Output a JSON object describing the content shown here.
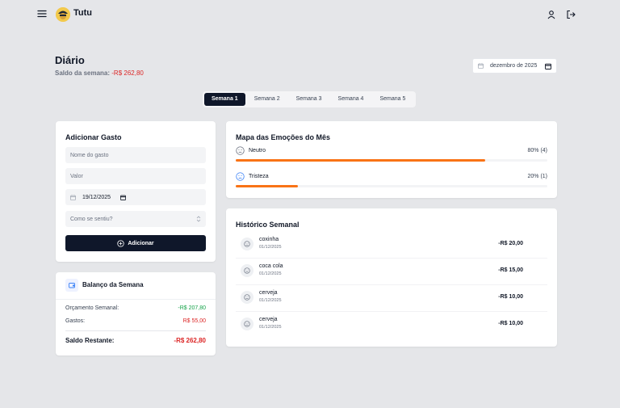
{
  "header": {
    "brand": "Tutu",
    "menu_icon": "menu-icon",
    "user_icon": "user-icon",
    "logout_icon": "logout-icon"
  },
  "page": {
    "title": "Diário",
    "saldo_label": "Saldo da semana:",
    "saldo_value": "-R$ 262,80",
    "date_value": "dezembro de 2025"
  },
  "tabs": [
    "Semana 1",
    "Semana 2",
    "Semana 3",
    "Semana 4",
    "Semana 5"
  ],
  "active_tab": "Semana 1",
  "add_expense": {
    "title": "Adicionar Gasto",
    "name_placeholder": "Nome do gasto",
    "value_placeholder": "Valor",
    "date_value": "19/12/2025",
    "feeling_placeholder": "Como se sentiu?",
    "submit_label": "Adicionar"
  },
  "balance": {
    "title": "Balanço da Semana",
    "budget_label": "Orçamento Semanal:",
    "budget_value": "-R$ 207,80",
    "expenses_label": "Gastos:",
    "expenses_value": "R$ 55,00",
    "remaining_label": "Saldo Restante:",
    "remaining_value": "-R$ 262,80"
  },
  "emotions": {
    "title": "Mapa das Emoções do Mês",
    "items": [
      {
        "label": "Neutro",
        "pct_text": "80% (4)",
        "fraction": 0.8,
        "icon": "neutral-face-icon"
      },
      {
        "label": "Tristeza",
        "pct_text": "20% (1)",
        "fraction": 0.2,
        "icon": "sad-face-icon"
      }
    ]
  },
  "history": {
    "title": "Histórico Semanal",
    "items": [
      {
        "name": "coxinha",
        "date": "01/12/2025",
        "value": "-R$ 20,00"
      },
      {
        "name": "coca cola",
        "date": "01/12/2025",
        "value": "-R$ 15,00"
      },
      {
        "name": "cerveja",
        "date": "01/12/2025",
        "value": "-R$ 10,00"
      },
      {
        "name": "cerveja",
        "date": "01/12/2025",
        "value": "-R$ 10,00"
      }
    ]
  },
  "colors": {
    "primary": "#0f172a",
    "accent": "#f97316",
    "negative": "#dc2626",
    "positive": "#16a34a",
    "emotion_icon": "#3b82f6"
  }
}
